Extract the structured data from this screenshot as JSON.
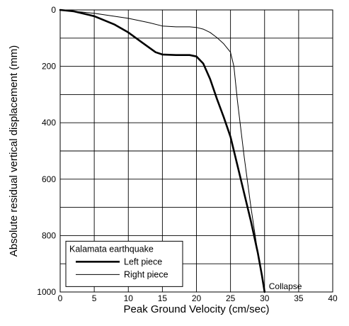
{
  "chart_data": {
    "type": "line",
    "title": "",
    "xlabel": "Peak Ground Velocity (cm/sec)",
    "ylabel": "Absolute residual vertical displacement (mm)",
    "xlim": [
      0,
      40
    ],
    "ylim": [
      0,
      1000
    ],
    "y_inverted": true,
    "x_ticks": [
      0,
      5,
      10,
      15,
      20,
      25,
      30,
      35,
      40
    ],
    "x_tick_labels": [
      "0",
      "5",
      "10",
      "15",
      "20",
      "25",
      "30",
      "35",
      "40"
    ],
    "y_ticks": [
      0,
      200,
      400,
      600,
      800,
      1000
    ],
    "y_tick_labels": [
      "0",
      "200",
      "400",
      "600",
      "800",
      "1000"
    ],
    "grid_x": [
      0,
      5,
      10,
      15,
      20,
      25,
      30,
      35,
      40
    ],
    "grid_y": [
      0,
      100,
      200,
      300,
      400,
      500,
      600,
      700,
      800,
      900,
      1000
    ],
    "legend": {
      "title": "Kalamata earthquake",
      "position": "bottom-left"
    },
    "series": [
      {
        "name": "Left piece",
        "style": "thick",
        "x": [
          0,
          2,
          5,
          8,
          10,
          12,
          14,
          15,
          17,
          19,
          20,
          21,
          22,
          23,
          24,
          25,
          26,
          27,
          28,
          29,
          29.6,
          30
        ],
        "y": [
          0,
          5,
          22,
          52,
          80,
          115,
          150,
          158,
          160,
          160,
          165,
          190,
          245,
          315,
          380,
          450,
          550,
          650,
          750,
          860,
          940,
          1000
        ]
      },
      {
        "name": "Right piece",
        "style": "thin",
        "x": [
          0,
          5,
          10,
          13,
          15,
          17,
          19,
          20,
          21,
          22,
          23,
          24,
          25,
          25.5,
          26,
          27,
          28,
          29,
          30
        ],
        "y": [
          0,
          12,
          30,
          45,
          57,
          60,
          60,
          62,
          68,
          80,
          98,
          120,
          150,
          200,
          320,
          520,
          700,
          860,
          1000
        ]
      }
    ],
    "annotations": [
      {
        "text": "Collapse",
        "x": 30,
        "y": 1000
      }
    ]
  }
}
